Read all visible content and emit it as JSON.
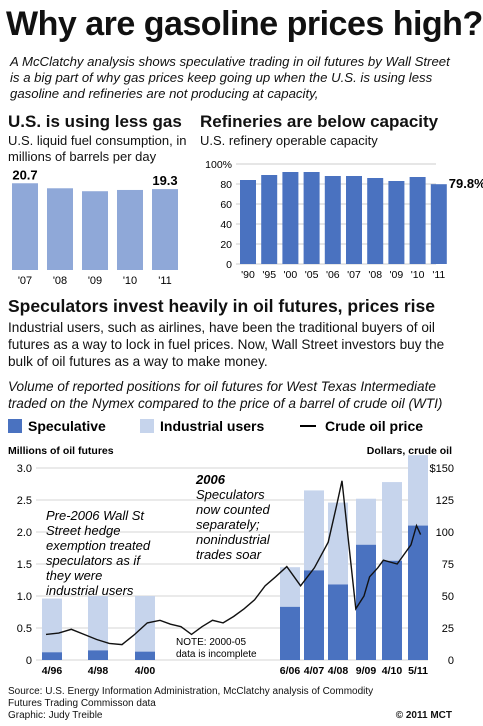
{
  "title": "Why are gasoline prices high?",
  "intro": " A McClatchy analysis shows speculative trading in oil futures by Wall Street is a big part of why gas prices keep going up when the U.S. is using less gasoline and refineries are not producing at capacity,",
  "section3": {
    "heading": "Speculators invest heavily in oil futures, prices rise",
    "body": "Industrial users, such as airlines, have been the traditional buyers of oil futures as a way to lock in fuel prices. Now, Wall Street investors buy the bulk of oil futures as a way to make money.",
    "caption": "Volume of reported positions for oil futures for West Texas Intermediate traded on the Nymex compared to the price of a barrel of crude oil (WTI)"
  },
  "footer": {
    "source": "Source: U.S. Energy Information Administration, McClatchy analysis of Commodity Futures Trading Commisson data",
    "graphic": "Graphic: Judy Treible",
    "credit": "© 2011 MCT"
  },
  "colors": {
    "dark": "#4a72c0",
    "light": "#c6d4ec"
  },
  "chart_data": [
    {
      "type": "bar",
      "title": "U.S. is using less gas",
      "subtitle": "U.S. liquid fuel consumption, in millions of barrels per day",
      "categories": [
        "'07",
        "'08",
        "'09",
        "'10",
        "'11"
      ],
      "values": [
        20.7,
        19.5,
        18.8,
        19.1,
        19.3
      ],
      "data_labels": [
        "20.7",
        "",
        "",
        "",
        "19.3"
      ],
      "ylim": [
        0,
        21
      ]
    },
    {
      "type": "bar",
      "title": "Refineries are below capacity",
      "subtitle": "U.S. refinery operable capacity",
      "categories": [
        "'90",
        "'95",
        "'00",
        "'05",
        "'06",
        "'07",
        "'08",
        "'09",
        "'10",
        "'11"
      ],
      "values": [
        84,
        89,
        92,
        92,
        88,
        88,
        86,
        83,
        87,
        79.8
      ],
      "data_labels": [
        "",
        "",
        "",
        "",
        "",
        "",
        "",
        "",
        "",
        "79.8%"
      ],
      "y_ticks": [
        "100%",
        "80",
        "60",
        "40",
        "20",
        "0"
      ],
      "ylim": [
        0,
        100
      ]
    },
    {
      "type": "bar",
      "legend": [
        "Speculative",
        "Industrial users",
        "Crude oil price"
      ],
      "ylabel_left": "Millions of oil futures",
      "ylabel_right": "Dollars, crude oil",
      "left_ticks": [
        "3.0",
        "2.5",
        "2.0",
        "1.5",
        "1.0",
        "0.5",
        "0"
      ],
      "right_ticks": [
        "$150",
        "125",
        "100",
        "75",
        "50",
        "25",
        "0"
      ],
      "ylim": [
        0,
        3.0
      ],
      "ylim_right": [
        0,
        150
      ],
      "x_labels": [
        "4/96",
        "4/98",
        "4/00",
        "6/06",
        "4/07",
        "4/08",
        "9/09",
        "4/10",
        "5/11"
      ],
      "bars": [
        {
          "date": "4/96",
          "speculative": 0.12,
          "total": 0.96
        },
        {
          "date": "4/98",
          "speculative": 0.15,
          "total": 1.0
        },
        {
          "date": "4/00",
          "speculative": 0.13,
          "total": 1.0
        },
        {
          "date": "6/06",
          "speculative": 0.83,
          "total": 1.45
        },
        {
          "date": "4/07",
          "speculative": 1.4,
          "total": 2.65
        },
        {
          "date": "4/08",
          "speculative": 1.18,
          "total": 2.46
        },
        {
          "date": "9/09",
          "speculative": 1.8,
          "total": 2.52
        },
        {
          "date": "4/10",
          "speculative": 1.55,
          "total": 2.78
        },
        {
          "date": "5/11",
          "speculative": 2.1,
          "total": 3.2
        }
      ],
      "crude_price": {
        "dates": [
          1996.0,
          1996.5,
          1997.0,
          1997.5,
          1998.0,
          1998.5,
          1999.0,
          1999.5,
          2000.0,
          2000.5,
          2001.0,
          2001.5,
          2002.0,
          2002.5,
          2003.0,
          2003.5,
          2004.0,
          2004.5,
          2005.0,
          2005.5,
          2006.0,
          2006.5,
          2007.0,
          2007.5,
          2008.0,
          2008.3,
          2008.5,
          2008.7,
          2009.0,
          2009.3,
          2009.5,
          2009.8,
          2010.0,
          2010.5,
          2011.0,
          2011.2,
          2011.35
        ],
        "values": [
          20,
          21,
          24,
          20,
          16,
          13,
          12,
          20,
          29,
          31,
          28,
          26,
          20,
          26,
          31,
          29,
          34,
          40,
          47,
          58,
          65,
          73,
          58,
          72,
          92,
          120,
          140,
          100,
          40,
          50,
          65,
          72,
          78,
          75,
          90,
          105,
          98
        ]
      },
      "annotations": [
        "Pre-2006 Wall Street hedge exemption treated speculators as if they were industrial users",
        "2006",
        "Speculators now counted separately; nonindustrial trades soar",
        "NOTE: 2000-05 data is incomplete"
      ]
    }
  ]
}
